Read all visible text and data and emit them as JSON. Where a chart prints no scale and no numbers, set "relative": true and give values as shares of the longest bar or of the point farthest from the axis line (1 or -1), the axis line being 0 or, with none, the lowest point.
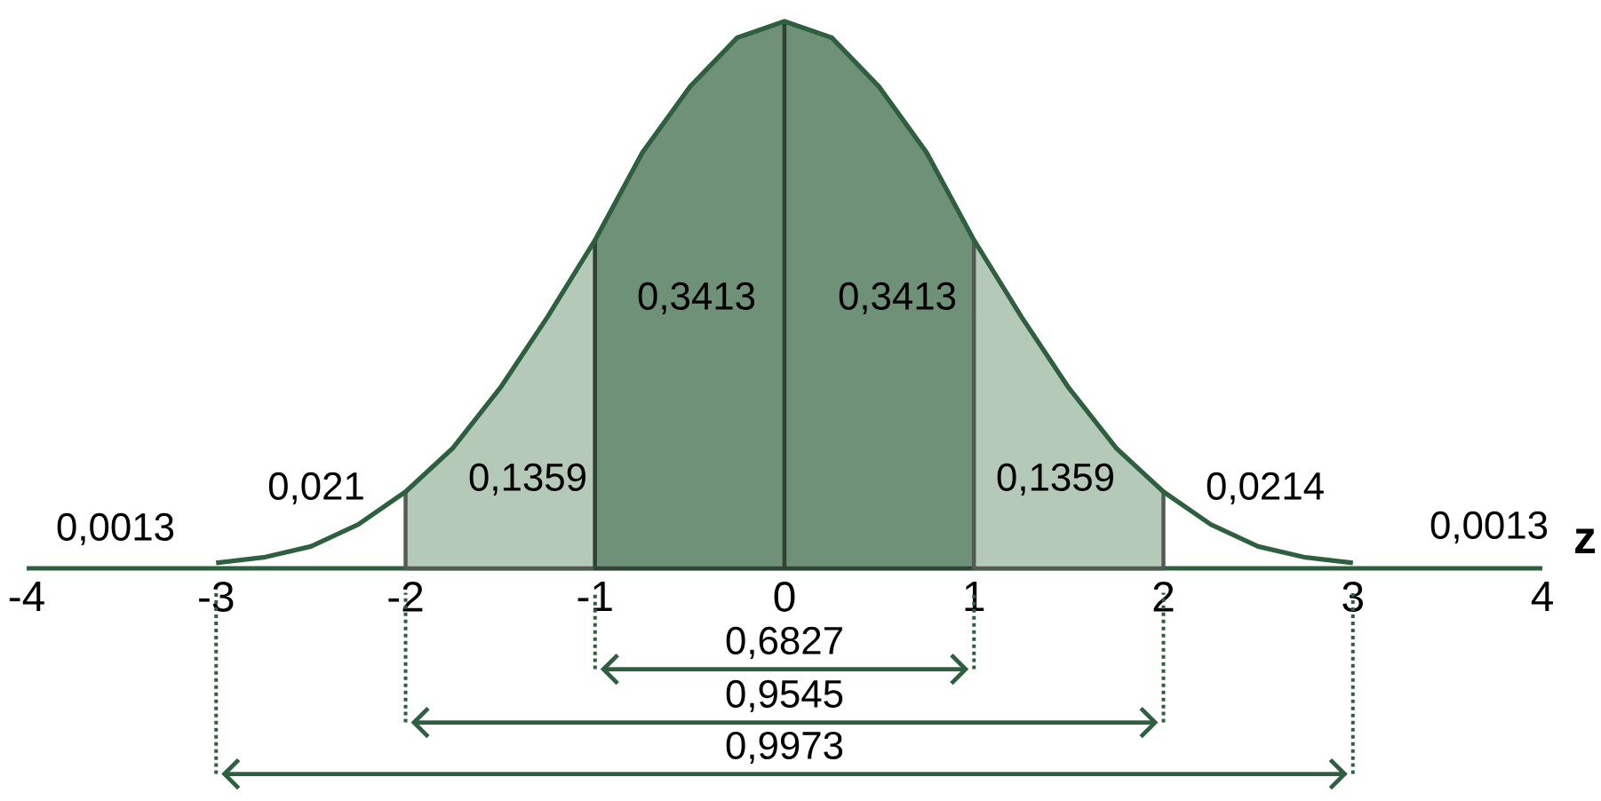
{
  "chart_data": {
    "type": "area",
    "relative": true,
    "xlabel": "z",
    "tick_labels": "x",
    "xlim": [
      -4,
      4
    ],
    "xticks": [
      -4,
      -3,
      -2,
      -1,
      0,
      1,
      2,
      3,
      4
    ],
    "series": [
      {
        "color": "#b5c9b8",
        "x": [
          -2,
          -1.75,
          -1.5,
          -1.25,
          -1
        ],
        "values": [
          0.14,
          0.22,
          0.33,
          0.46,
          0.6
        ]
      },
      {
        "color": "#6f9177",
        "x": [
          -1,
          -0.75,
          -0.5,
          -0.25,
          0
        ],
        "values": [
          0.6,
          0.76,
          0.88,
          0.97,
          1
        ]
      },
      {
        "color": "#6f9177",
        "x": [
          0,
          0.25,
          0.5,
          0.75,
          1
        ],
        "values": [
          1,
          0.97,
          0.88,
          0.76,
          0.6
        ]
      },
      {
        "color": "#b5c9b8",
        "x": [
          1,
          1.25,
          1.5,
          1.75,
          2
        ],
        "values": [
          0.6,
          0.46,
          0.33,
          0.22,
          0.14
        ]
      },
      {
        "type": "line",
        "color": "#2e6040",
        "x": [
          -3,
          -2.75,
          -2.5,
          -2.25,
          -2,
          -1.75,
          -1.5,
          -1.25,
          -1,
          -0.75,
          -0.5,
          -0.25,
          0,
          0.25,
          0.5,
          0.75,
          1,
          1.25,
          1.5,
          1.75,
          2,
          2.25,
          2.5,
          2.75,
          3
        ],
        "values": [
          0.01,
          0.02,
          0.04,
          0.08,
          0.14,
          0.22,
          0.33,
          0.46,
          0.6,
          0.76,
          0.88,
          0.97,
          1,
          0.97,
          0.88,
          0.76,
          0.6,
          0.46,
          0.33,
          0.22,
          0.14,
          0.08,
          0.04,
          0.02,
          0.01
        ]
      }
    ],
    "annotations": [
      "0,0013",
      "0,021",
      "0,1359",
      "0,3413",
      "0,3413",
      "0,1359",
      "0,0214",
      "0,0013",
      "0,6827",
      "0,9545",
      "0,9973"
    ]
  }
}
